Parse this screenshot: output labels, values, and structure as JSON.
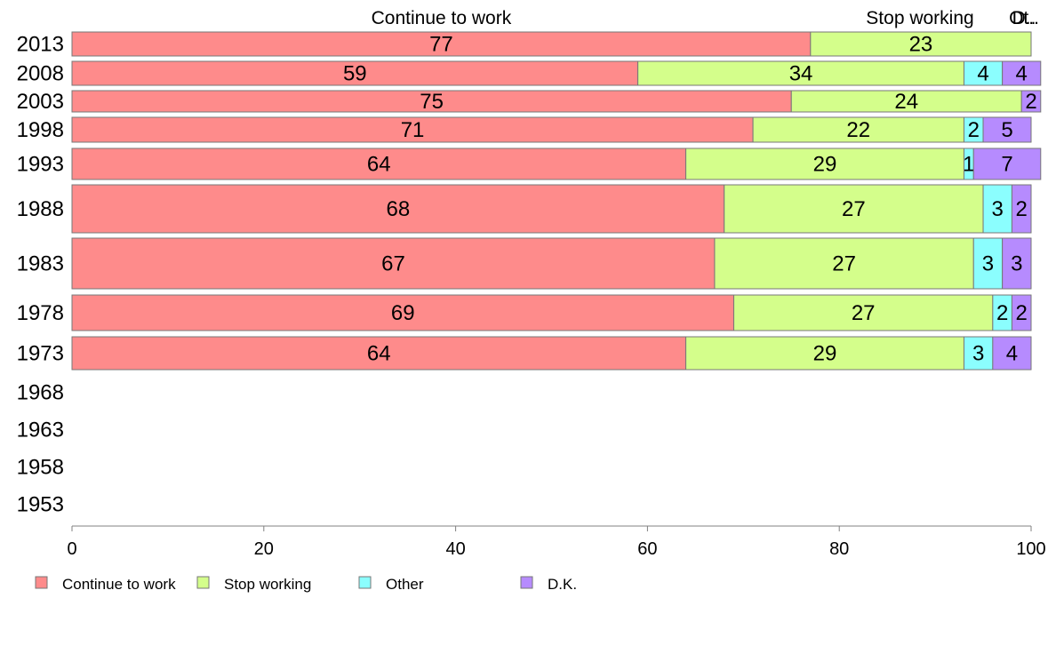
{
  "chart_data": {
    "type": "bar",
    "orientation": "horizontal",
    "stacked": true,
    "categories": [
      "2013",
      "2008",
      "2003",
      "1998",
      "1993",
      "1988",
      "1983",
      "1978",
      "1973",
      "1968",
      "1963",
      "1958",
      "1953"
    ],
    "series": [
      {
        "name": "Continue to work",
        "color": "#fe8b8b",
        "values": [
          77,
          59,
          75,
          71,
          64,
          68,
          67,
          69,
          64,
          null,
          null,
          null,
          null
        ]
      },
      {
        "name": "Stop working",
        "color": "#d4fe8b",
        "values": [
          23,
          34,
          24,
          22,
          29,
          27,
          27,
          27,
          29,
          null,
          null,
          null,
          null
        ]
      },
      {
        "name": "Other",
        "color": "#8bfefe",
        "values": [
          0,
          4,
          0,
          2,
          1,
          3,
          3,
          2,
          3,
          null,
          null,
          null,
          null
        ]
      },
      {
        "name": "D.K.",
        "color": "#b68bfe",
        "values": [
          0,
          4,
          2,
          5,
          7,
          2,
          3,
          2,
          4,
          null,
          null,
          null,
          null
        ]
      }
    ],
    "top_labels": [
      "Continue to work",
      "Stop working",
      "Other",
      "D.K."
    ],
    "top_label_texts": [
      "Continue to work",
      "Stop working",
      "Ot..",
      "D.."
    ],
    "x_ticks": [
      "0",
      "20",
      "40",
      "60",
      "80",
      "100"
    ],
    "xlim": [
      0,
      100
    ],
    "grid": false,
    "legend_position": "bottom-left",
    "legend": [
      "Continue to work",
      "Stop working",
      "Other",
      "D.K."
    ]
  }
}
